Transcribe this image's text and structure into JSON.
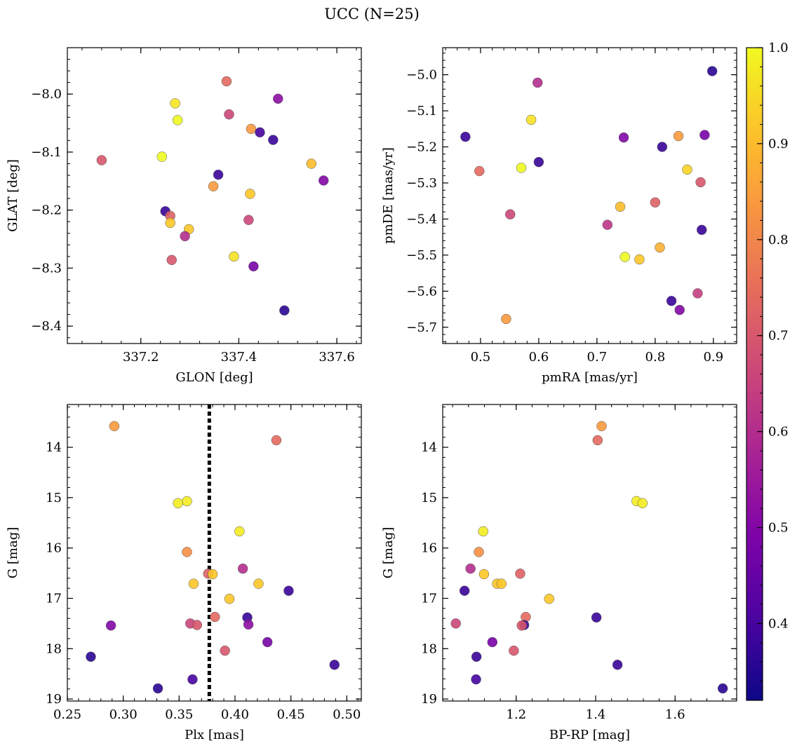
{
  "chart_data": {
    "type": "scatter",
    "title": "UCC (N=25)",
    "colorbar": {
      "min": 0.32,
      "max": 1.0,
      "colormap": "plasma",
      "ticks": [
        0.4,
        0.5,
        0.6,
        0.7,
        0.8,
        0.9,
        1.0
      ],
      "tick_labels": [
        "0.4",
        "0.5",
        "0.6",
        "0.7",
        "0.8",
        "0.9",
        "1.0"
      ]
    },
    "panels": [
      {
        "xlabel": "GLON [deg]",
        "ylabel": "GLAT [deg]",
        "xlim": [
          337.05,
          337.65
        ],
        "ylim": [
          -8.43,
          -7.92
        ],
        "y_inverted": false,
        "xticks": [
          337.2,
          337.4,
          337.6
        ],
        "xtick_labels": [
          "337.2",
          "337.4",
          "337.6"
        ],
        "yticks": [
          -8.0,
          -8.1,
          -8.2,
          -8.3,
          -8.4
        ],
        "ytick_labels": [
          "−8.0",
          "−8.1",
          "−8.2",
          "−8.3",
          "−8.4"
        ],
        "x": [
          337.375,
          337.48,
          337.27,
          337.38,
          337.275,
          337.425,
          337.443,
          337.47,
          337.12,
          337.243,
          337.548,
          337.358,
          337.573,
          337.348,
          337.423,
          337.25,
          337.26,
          337.42,
          337.26,
          337.298,
          337.29,
          337.263,
          337.39,
          337.43,
          337.493
        ],
        "y": [
          -7.978,
          -8.008,
          -8.016,
          -8.035,
          -8.045,
          -8.06,
          -8.066,
          -8.079,
          -8.114,
          -8.108,
          -8.12,
          -8.139,
          -8.149,
          -8.159,
          -8.172,
          -8.202,
          -8.21,
          -8.217,
          -8.222,
          -8.233,
          -8.245,
          -8.286,
          -8.28,
          -8.297,
          -8.373
        ]
      },
      {
        "xlabel": "pmRA [mas/yr]",
        "ylabel": "pmDE [mas/yr]",
        "xlim": [
          0.435,
          0.94
        ],
        "ylim": [
          -5.745,
          -4.925
        ],
        "y_inverted": false,
        "xticks": [
          0.5,
          0.6,
          0.7,
          0.8,
          0.9
        ],
        "xtick_labels": [
          "0.5",
          "0.6",
          "0.7",
          "0.8",
          "0.9"
        ],
        "yticks": [
          -5.0,
          -5.1,
          -5.2,
          -5.3,
          -5.4,
          -5.5,
          -5.6,
          -5.7
        ],
        "ytick_labels": [
          "−5.0",
          "−5.1",
          "−5.2",
          "−5.3",
          "−5.4",
          "−5.5",
          "−5.6",
          "−5.7"
        ],
        "x": [
          0.898,
          0.598,
          0.587,
          0.474,
          0.885,
          0.746,
          0.84,
          0.812,
          0.6,
          0.57,
          0.498,
          0.855,
          0.878,
          0.8,
          0.74,
          0.551,
          0.718,
          0.88,
          0.808,
          0.748,
          0.773,
          0.873,
          0.828,
          0.842,
          0.544
        ],
        "y": [
          -4.99,
          -5.022,
          -5.125,
          -5.172,
          -5.167,
          -5.174,
          -5.17,
          -5.2,
          -5.242,
          -5.258,
          -5.267,
          -5.263,
          -5.298,
          -5.354,
          -5.366,
          -5.387,
          -5.416,
          -5.43,
          -5.479,
          -5.505,
          -5.512,
          -5.606,
          -5.627,
          -5.652,
          -5.677
        ]
      },
      {
        "xlabel": "Plx [mas]",
        "ylabel": "G [mag]",
        "xlim": [
          0.25,
          0.513
        ],
        "ylim": [
          19.04,
          13.15
        ],
        "y_inverted": true,
        "xticks": [
          0.25,
          0.3,
          0.35,
          0.4,
          0.45,
          0.5
        ],
        "xtick_labels": [
          "0.25",
          "0.30",
          "0.35",
          "0.40",
          "0.45",
          "0.50"
        ],
        "yticks": [
          14,
          15,
          16,
          17,
          18,
          19
        ],
        "ytick_labels": [
          "14",
          "15",
          "16",
          "17",
          "18",
          "19"
        ],
        "vline": 0.377,
        "x": [
          0.292,
          0.437,
          0.357,
          0.349,
          0.404,
          0.357,
          0.407,
          0.376,
          0.38,
          0.363,
          0.421,
          0.448,
          0.395,
          0.382,
          0.411,
          0.36,
          0.412,
          0.366,
          0.289,
          0.429,
          0.391,
          0.271,
          0.489,
          0.362,
          0.331
        ],
        "y": [
          13.58,
          13.86,
          15.07,
          15.11,
          15.67,
          16.08,
          16.41,
          16.51,
          16.52,
          16.71,
          16.71,
          16.85,
          17.01,
          17.37,
          17.38,
          17.5,
          17.52,
          17.53,
          17.54,
          17.87,
          18.04,
          18.16,
          18.32,
          18.61,
          18.79
        ]
      },
      {
        "xlabel": "BP-RP [mag]",
        "ylabel": "G [mag]",
        "xlim": [
          1.015,
          1.755
        ],
        "ylim": [
          19.04,
          13.15
        ],
        "y_inverted": true,
        "xticks": [
          1.2,
          1.4,
          1.6
        ],
        "xtick_labels": [
          "1.2",
          "1.4",
          "1.6"
        ],
        "yticks": [
          14,
          15,
          16,
          17,
          18,
          19
        ],
        "ytick_labels": [
          "14",
          "15",
          "16",
          "17",
          "18",
          "19"
        ],
        "x": [
          1.415,
          1.405,
          1.503,
          1.518,
          1.117,
          1.106,
          1.085,
          1.119,
          1.21,
          1.152,
          1.163,
          1.07,
          1.283,
          1.224,
          1.402,
          1.048,
          1.22,
          1.214,
          1.14,
          1.194,
          1.1,
          1.455,
          1.099,
          1.72
        ],
        "y": [
          13.58,
          13.86,
          15.07,
          15.11,
          15.67,
          16.08,
          16.41,
          16.52,
          16.51,
          16.71,
          16.71,
          16.85,
          17.01,
          17.37,
          17.38,
          17.5,
          17.53,
          17.54,
          17.87,
          18.04,
          18.16,
          18.32,
          18.61,
          18.79
        ]
      }
    ],
    "colors_panel": [
      [
        0.74,
        0.52,
        0.97,
        0.66,
        1.0,
        0.84,
        0.4,
        0.38,
        0.7,
        1.0,
        0.9,
        0.38,
        0.5,
        0.84,
        0.92,
        0.38,
        0.72,
        0.66,
        0.92,
        0.92,
        0.6,
        0.7,
        0.96,
        0.48,
        0.36
      ],
      [
        0.36,
        0.6,
        0.96,
        0.38,
        0.48,
        0.5,
        0.84,
        0.38,
        0.38,
        1.0,
        0.74,
        0.94,
        0.7,
        0.72,
        0.9,
        0.66,
        0.62,
        0.38,
        0.88,
        1.0,
        0.92,
        0.64,
        0.38,
        0.5,
        0.84
      ],
      [
        0.84,
        0.74,
        0.98,
        0.98,
        0.98,
        0.82,
        0.6,
        0.72,
        0.92,
        0.92,
        0.92,
        0.38,
        0.92,
        0.74,
        0.38,
        0.66,
        0.52,
        0.7,
        0.5,
        0.48,
        0.7,
        0.36,
        0.38,
        0.4,
        0.36
      ],
      [
        0.84,
        0.74,
        0.98,
        0.98,
        0.98,
        0.82,
        0.6,
        0.92,
        0.72,
        0.92,
        0.92,
        0.38,
        0.92,
        0.74,
        0.38,
        0.66,
        0.38,
        0.7,
        0.48,
        0.7,
        0.38,
        0.38,
        0.4,
        0.36
      ]
    ]
  }
}
